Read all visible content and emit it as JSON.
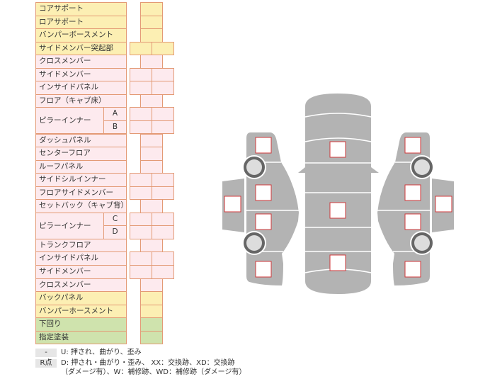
{
  "rows": [
    {
      "label": "コアサポート",
      "color": "y",
      "boxes": 1
    },
    {
      "label": "ロアサポート",
      "color": "y",
      "boxes": 1
    },
    {
      "label": "バンパーボースメント",
      "color": "y",
      "boxes": 1
    },
    {
      "label": "サイドメンバー突起部",
      "color": "y",
      "boxes": 2
    },
    {
      "label": "クロスメンバー",
      "color": "p",
      "boxes": 1
    },
    {
      "label": "サイドメンバー",
      "color": "p",
      "boxes": 2
    },
    {
      "label": "インサイドパネル",
      "color": "p",
      "boxes": 2
    },
    {
      "label": "フロア（キャブ床）",
      "color": "p",
      "boxes": 1
    },
    {
      "label": "ピラーインナー",
      "sub": "A",
      "color": "p",
      "boxes": 2
    },
    {
      "label": "",
      "sub": "B",
      "color": "p",
      "boxes": 2
    },
    {
      "label": "ダッシュパネル",
      "color": "p",
      "boxes": 1
    },
    {
      "label": "センターフロア",
      "color": "p",
      "boxes": 1
    },
    {
      "label": "ルーフパネル",
      "color": "p",
      "boxes": 1
    },
    {
      "label": "サイドシルインナー",
      "color": "p",
      "boxes": 2
    },
    {
      "label": "フロアサイドメンバー",
      "color": "p",
      "boxes": 2
    },
    {
      "label": "セットバック（キャブ背）",
      "color": "p",
      "boxes": 1
    },
    {
      "label": "ピラーインナー",
      "sub": "C",
      "color": "p",
      "boxes": 2
    },
    {
      "label": "",
      "sub": "D",
      "color": "p",
      "boxes": 2
    },
    {
      "label": "トランクフロア",
      "color": "p",
      "boxes": 1
    },
    {
      "label": "インサイドパネル",
      "color": "p",
      "boxes": 2
    },
    {
      "label": "サイドメンバー",
      "color": "p",
      "boxes": 2
    },
    {
      "label": "クロスメンバー",
      "color": "p",
      "boxes": 1
    },
    {
      "label": "バックパネル",
      "color": "y",
      "boxes": 1
    },
    {
      "label": "バンパーホースメント",
      "color": "y",
      "boxes": 1
    },
    {
      "label": "下回り",
      "color": "g",
      "boxes": 1
    },
    {
      "label": "指定塗装",
      "color": "g",
      "boxes": 1
    }
  ],
  "legend": {
    "key1": "-",
    "text1": "U: 押され、曲がり、歪み",
    "key2": "R点",
    "text2": "D: 押され・曲がり・歪み、 XX：交換跡、XD：交換跡",
    "text3": "（ダメージ有）、W：補修跡、WD：補修跡（ダメージ有）"
  },
  "colors": {
    "body": "#b3b3b3",
    "mark_border": "#d0393b",
    "tire": "#666666",
    "hub": "#dddddd"
  }
}
